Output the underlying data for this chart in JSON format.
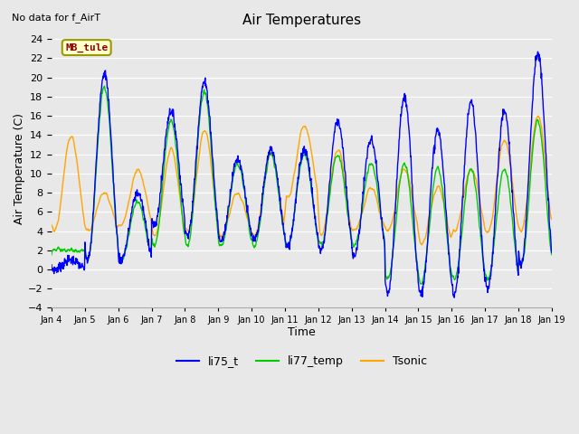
{
  "title": "Air Temperatures",
  "no_data_text": "No data for f_AirT",
  "legend_label_text": "MB_tule",
  "xlabel": "Time",
  "ylabel": "Air Temperature (C)",
  "ylim": [
    -4,
    25
  ],
  "yticks": [
    -4,
    -2,
    0,
    2,
    4,
    6,
    8,
    10,
    12,
    14,
    16,
    18,
    20,
    22,
    24
  ],
  "colors": {
    "li75_t": "#0000ff",
    "li77_temp": "#00cc00",
    "Tsonic": "#ffa500"
  },
  "line_width": 1.0,
  "bg_color": "#e8e8e8",
  "fig_color": "#e8e8e8",
  "grid_color": "#ffffff",
  "start_day": 4,
  "end_day": 19,
  "figsize": [
    6.4,
    4.8
  ],
  "dpi": 100,
  "title_fontsize": 11,
  "axis_fontsize": 8,
  "label_fontsize": 9
}
